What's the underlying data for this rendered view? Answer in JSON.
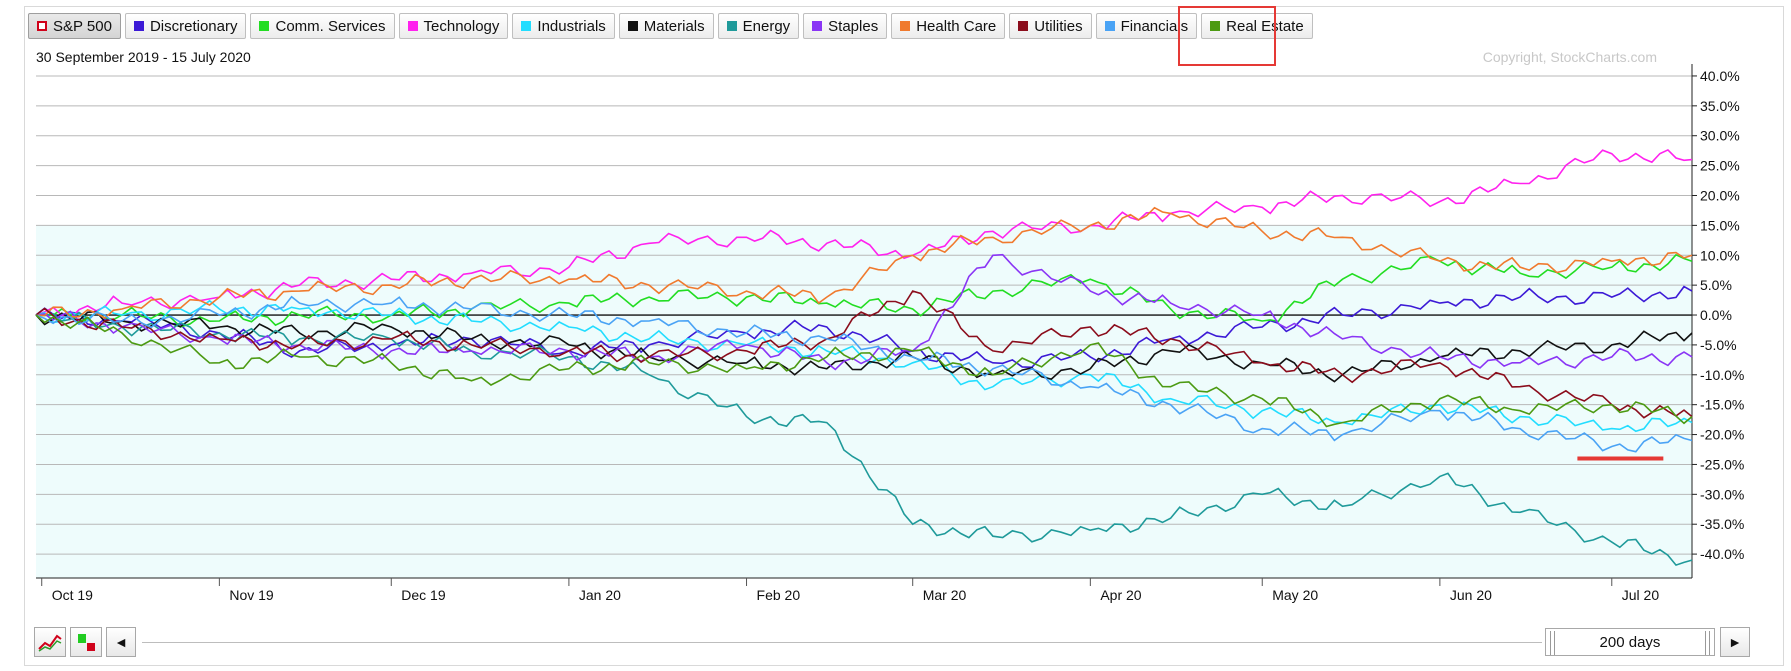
{
  "legend": [
    {
      "label": "S&P 500",
      "color": "#d0021b",
      "hollow": true,
      "active": true
    },
    {
      "label": "Discretionary",
      "color": "#3c1ad6",
      "hollow": false,
      "active": false
    },
    {
      "label": "Comm. Services",
      "color": "#22dd22",
      "hollow": false,
      "active": false
    },
    {
      "label": "Technology",
      "color": "#ff22ee",
      "hollow": false,
      "active": false
    },
    {
      "label": "Industrials",
      "color": "#22ddff",
      "hollow": false,
      "active": false
    },
    {
      "label": "Materials",
      "color": "#111111",
      "hollow": false,
      "active": false
    },
    {
      "label": "Energy",
      "color": "#1f9a9a",
      "hollow": false,
      "active": false
    },
    {
      "label": "Staples",
      "color": "#8a35f5",
      "hollow": false,
      "active": false
    },
    {
      "label": "Health Care",
      "color": "#f07a2e",
      "hollow": false,
      "active": false
    },
    {
      "label": "Utilities",
      "color": "#8b0d1c",
      "hollow": false,
      "active": false
    },
    {
      "label": "Financials",
      "color": "#4aa3f5",
      "hollow": false,
      "active": false
    },
    {
      "label": "Real Estate",
      "color": "#4c9a12",
      "hollow": false,
      "active": false
    }
  ],
  "date_range": "30 September 2019 - 15 July 2020",
  "copyright": "Copyright, StockCharts.com",
  "controls": {
    "prev_arrow": "◄",
    "next_arrow": "►",
    "period_label": "200 days"
  },
  "chart_data": {
    "type": "line",
    "ylim": [
      -44,
      42
    ],
    "y_ticks": [
      "40.0%",
      "35.0%",
      "30.0%",
      "25.0%",
      "20.0%",
      "15.0%",
      "10.0%",
      "5.0%",
      "0.0%",
      "-5.0%",
      "-10.0%",
      "-15.0%",
      "-20.0%",
      "-25.0%",
      "-30.0%",
      "-35.0%",
      "-40.0%"
    ],
    "y_tick_values": [
      40,
      35,
      30,
      25,
      20,
      15,
      10,
      5,
      0,
      -5,
      -10,
      -15,
      -20,
      -25,
      -30,
      -35,
      -40
    ],
    "x_ticks": [
      "Oct 19",
      "Nov 19",
      "Dec 19",
      "Jan 20",
      "Feb 20",
      "Mar 20",
      "Apr 20",
      "May 20",
      "Jun 20",
      "Jul 20"
    ],
    "x_tick_dates": [
      "2019-10-01",
      "2019-11-01",
      "2019-12-01",
      "2020-01-01",
      "2020-02-01",
      "2020-03-01",
      "2020-04-01",
      "2020-05-01",
      "2020-06-01",
      "2020-07-01"
    ],
    "x_range": [
      "2019-09-30",
      "2020-07-15"
    ],
    "grid": true,
    "zero_line": true,
    "shaded_below": 15,
    "series": [
      {
        "name": "Discretionary",
        "color": "#3c1ad6",
        "dates": [
          "2019-09-30",
          "2019-10-15",
          "2019-11-01",
          "2019-11-15",
          "2019-12-01",
          "2019-12-15",
          "2020-01-01",
          "2020-01-15",
          "2020-02-01",
          "2020-02-15",
          "2020-03-01",
          "2020-03-15",
          "2020-04-01",
          "2020-04-15",
          "2020-05-01",
          "2020-05-15",
          "2020-06-01",
          "2020-06-15",
          "2020-07-01",
          "2020-07-15"
        ],
        "values": [
          0,
          -1,
          -3,
          -6,
          -5,
          -4,
          -6,
          -5,
          -3,
          -2,
          -6,
          -8,
          -7,
          -4,
          -2,
          0,
          2,
          3,
          3,
          4
        ]
      },
      {
        "name": "Comm. Services",
        "color": "#22dd22",
        "dates": [
          "2019-09-30",
          "2019-10-15",
          "2019-11-01",
          "2019-11-15",
          "2019-12-01",
          "2019-12-15",
          "2020-01-01",
          "2020-01-15",
          "2020-02-01",
          "2020-02-15",
          "2020-03-01",
          "2020-03-15",
          "2020-04-01",
          "2020-04-15",
          "2020-05-01",
          "2020-05-15",
          "2020-06-01",
          "2020-06-15",
          "2020-07-01",
          "2020-07-15"
        ],
        "values": [
          0,
          0,
          -1,
          0,
          0,
          1,
          2,
          3,
          3,
          2,
          1,
          4,
          6,
          1,
          -1,
          6,
          9,
          7,
          8,
          9
        ]
      },
      {
        "name": "Technology",
        "color": "#ff22ee",
        "dates": [
          "2019-09-30",
          "2019-10-15",
          "2019-11-01",
          "2019-11-15",
          "2019-12-01",
          "2019-12-15",
          "2020-01-01",
          "2020-01-15",
          "2020-02-01",
          "2020-02-15",
          "2020-03-01",
          "2020-03-15",
          "2020-04-01",
          "2020-04-15",
          "2020-05-01",
          "2020-05-15",
          "2020-06-01",
          "2020-06-15",
          "2020-07-01",
          "2020-07-15"
        ],
        "values": [
          0,
          2,
          3,
          5,
          6,
          7,
          8,
          12,
          13,
          12,
          10,
          14,
          15,
          17,
          18,
          20,
          19,
          22,
          27,
          26
        ]
      },
      {
        "name": "Industrials",
        "color": "#22ddff",
        "dates": [
          "2019-09-30",
          "2019-10-15",
          "2019-11-01",
          "2019-11-15",
          "2019-12-01",
          "2019-12-15",
          "2020-01-01",
          "2020-01-15",
          "2020-02-01",
          "2020-02-15",
          "2020-03-01",
          "2020-03-15",
          "2020-04-01",
          "2020-04-15",
          "2020-05-01",
          "2020-05-15",
          "2020-06-01",
          "2020-06-15",
          "2020-07-01",
          "2020-07-15"
        ],
        "values": [
          0,
          0,
          1,
          1,
          0,
          -1,
          -2,
          -4,
          -5,
          -6,
          -8,
          -12,
          -10,
          -14,
          -16,
          -18,
          -15,
          -17,
          -19,
          -18
        ]
      },
      {
        "name": "Materials",
        "color": "#111111",
        "dates": [
          "2019-09-30",
          "2019-10-15",
          "2019-11-01",
          "2019-11-15",
          "2019-12-01",
          "2019-12-15",
          "2020-01-01",
          "2020-01-15",
          "2020-02-01",
          "2020-02-15",
          "2020-03-01",
          "2020-03-15",
          "2020-04-01",
          "2020-04-15",
          "2020-05-01",
          "2020-05-15",
          "2020-06-01",
          "2020-06-15",
          "2020-07-01",
          "2020-07-15"
        ],
        "values": [
          0,
          -1,
          -2,
          -3,
          -2,
          -4,
          -5,
          -7,
          -8,
          -9,
          -7,
          -10,
          -9,
          -6,
          -8,
          -10,
          -7,
          -6,
          -5,
          -3
        ]
      },
      {
        "name": "Energy",
        "color": "#1f9a9a",
        "dates": [
          "2019-09-30",
          "2019-10-15",
          "2019-11-01",
          "2019-11-15",
          "2019-12-01",
          "2019-12-15",
          "2020-01-01",
          "2020-01-15",
          "2020-02-01",
          "2020-02-15",
          "2020-03-01",
          "2020-03-15",
          "2020-04-01",
          "2020-04-15",
          "2020-05-01",
          "2020-05-15",
          "2020-06-01",
          "2020-06-15",
          "2020-07-01",
          "2020-07-15"
        ],
        "values": [
          0,
          -2,
          -3,
          -4,
          -4,
          -6,
          -7,
          -10,
          -17,
          -18,
          -35,
          -37,
          -36,
          -34,
          -30,
          -32,
          -27,
          -33,
          -38,
          -41
        ]
      },
      {
        "name": "Staples",
        "color": "#8a35f5",
        "dates": [
          "2019-09-30",
          "2019-10-15",
          "2019-11-01",
          "2019-11-15",
          "2019-12-01",
          "2019-12-15",
          "2020-01-01",
          "2020-01-15",
          "2020-02-01",
          "2020-02-15",
          "2020-03-01",
          "2020-03-15",
          "2020-04-01",
          "2020-04-15",
          "2020-05-01",
          "2020-05-15",
          "2020-06-01",
          "2020-06-15",
          "2020-07-01",
          "2020-07-15"
        ],
        "values": [
          0,
          -2,
          -4,
          -5,
          -6,
          -6,
          -6,
          -7,
          -5,
          -8,
          -6,
          10,
          4,
          2,
          0,
          -4,
          -7,
          -8,
          -7,
          -7
        ]
      },
      {
        "name": "Health Care",
        "color": "#f07a2e",
        "dates": [
          "2019-09-30",
          "2019-10-15",
          "2019-11-01",
          "2019-11-15",
          "2019-12-01",
          "2019-12-15",
          "2020-01-01",
          "2020-01-15",
          "2020-02-01",
          "2020-02-15",
          "2020-03-01",
          "2020-03-15",
          "2020-04-01",
          "2020-04-15",
          "2020-05-01",
          "2020-05-15",
          "2020-06-01",
          "2020-06-15",
          "2020-07-01",
          "2020-07-15"
        ],
        "values": [
          0,
          1,
          3,
          4,
          5,
          6,
          6,
          5,
          4,
          3,
          10,
          13,
          15,
          17,
          14,
          13,
          9,
          8,
          9,
          10
        ]
      },
      {
        "name": "Utilities",
        "color": "#8b0d1c",
        "dates": [
          "2019-09-30",
          "2019-10-15",
          "2019-11-01",
          "2019-11-15",
          "2019-12-01",
          "2019-12-15",
          "2020-01-01",
          "2020-01-15",
          "2020-02-01",
          "2020-02-15",
          "2020-03-01",
          "2020-03-15",
          "2020-04-01",
          "2020-04-15",
          "2020-05-01",
          "2020-05-15",
          "2020-06-01",
          "2020-06-15",
          "2020-07-01",
          "2020-07-15"
        ],
        "values": [
          0,
          -2,
          -4,
          -5,
          -4,
          -5,
          -6,
          -7,
          -6,
          -4,
          4,
          -6,
          -2,
          -4,
          -8,
          -10,
          -8,
          -12,
          -15,
          -17
        ]
      },
      {
        "name": "Financials",
        "color": "#4aa3f5",
        "dates": [
          "2019-09-30",
          "2019-10-15",
          "2019-11-01",
          "2019-11-15",
          "2019-12-01",
          "2019-12-15",
          "2020-01-01",
          "2020-01-15",
          "2020-02-01",
          "2020-02-15",
          "2020-03-01",
          "2020-03-15",
          "2020-04-01",
          "2020-04-15",
          "2020-05-01",
          "2020-05-15",
          "2020-06-01",
          "2020-06-15",
          "2020-07-01",
          "2020-07-15"
        ],
        "values": [
          0,
          -1,
          0,
          2,
          2,
          1,
          0,
          -1,
          -3,
          -4,
          -7,
          -9,
          -12,
          -15,
          -19,
          -20,
          -16,
          -19,
          -22,
          -21
        ]
      },
      {
        "name": "Real Estate",
        "color": "#4c9a12",
        "dates": [
          "2019-09-30",
          "2019-10-15",
          "2019-11-01",
          "2019-11-15",
          "2019-12-01",
          "2019-12-15",
          "2020-01-01",
          "2020-01-15",
          "2020-02-01",
          "2020-02-15",
          "2020-03-01",
          "2020-03-15",
          "2020-04-01",
          "2020-04-15",
          "2020-05-01",
          "2020-05-15",
          "2020-06-01",
          "2020-06-15",
          "2020-07-01",
          "2020-07-15"
        ],
        "values": [
          0,
          -3,
          -8,
          -7,
          -8,
          -11,
          -9,
          -8,
          -9,
          -7,
          -6,
          -10,
          -5,
          -12,
          -14,
          -18,
          -14,
          -16,
          -15,
          -17
        ]
      }
    ],
    "annotation": {
      "type": "red-underline",
      "date_start": "2020-06-25",
      "date_end": "2020-07-10",
      "value": -24
    }
  }
}
